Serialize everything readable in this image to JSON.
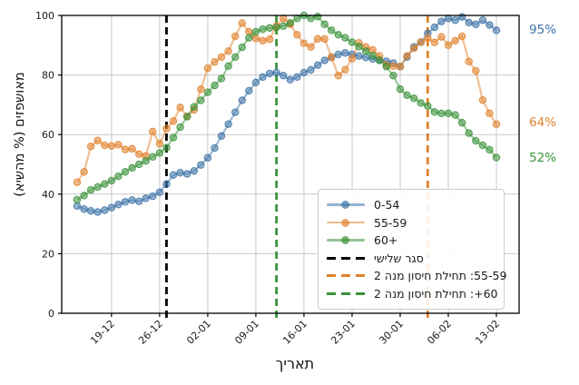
{
  "chart_data": {
    "type": "line",
    "title": "",
    "xlabel": "תאריך",
    "ylabel": "מאושפזים (% מהשיא)",
    "grid": true,
    "y_max": 100,
    "y_ticks": [
      0,
      20,
      40,
      60,
      80,
      100
    ],
    "x_tick_labels": [
      "19-12",
      "26-12",
      "02-01",
      "09-01",
      "16-01",
      "23-01",
      "30-01",
      "06-02",
      "13-02"
    ],
    "x_tick_day_indices": [
      5,
      12,
      19,
      26,
      33,
      40,
      47,
      54,
      61
    ],
    "series": [
      {
        "name": "0-54",
        "color": "#3d73a8",
        "values": [
          36.0,
          35.0,
          34.4,
          34.0,
          34.6,
          35.5,
          36.5,
          37.4,
          38.0,
          37.6,
          38.6,
          39.3,
          40.6,
          43.4,
          46.4,
          47.2,
          46.8,
          47.8,
          49.8,
          52.2,
          55.5,
          59.5,
          63.5,
          67.5,
          71.5,
          74.7,
          77.5,
          79.3,
          80.5,
          80.8,
          79.8,
          78.4,
          79.3,
          80.8,
          81.7,
          83.3,
          84.9,
          85.9,
          86.9,
          87.4,
          86.9,
          86.4,
          85.9,
          85.4,
          85.1,
          84.6,
          84.0,
          82.8,
          86.0,
          89.4,
          91.0,
          94.0,
          96.0,
          98.0,
          99.0,
          98.4,
          99.5,
          97.6,
          97.0,
          98.4,
          96.8,
          95.0
        ]
      },
      {
        "name": "55-59",
        "color": "#e1812c",
        "values": [
          44.0,
          47.5,
          56.0,
          58.0,
          56.4,
          56.2,
          56.6,
          55.0,
          55.2,
          53.4,
          52.8,
          61.0,
          56.9,
          62.0,
          64.5,
          69.1,
          66.1,
          68.3,
          75.2,
          82.3,
          84.4,
          86.0,
          88.0,
          93.0,
          97.4,
          94.5,
          92.3,
          91.5,
          92.0,
          96.4,
          99.0,
          97.0,
          93.5,
          90.6,
          89.4,
          92.1,
          92.1,
          86.0,
          79.8,
          81.8,
          85.5,
          90.8,
          89.4,
          88.4,
          86.4,
          83.3,
          83.0,
          82.8,
          86.4,
          89.0,
          91.0,
          92.4,
          90.9,
          92.8,
          90.0,
          91.5,
          93.0,
          84.5,
          81.4,
          71.6,
          67.1,
          63.5
        ]
      },
      {
        "name": "60+",
        "color": "#3a923a",
        "values": [
          38.1,
          39.5,
          41.4,
          42.4,
          43.4,
          44.5,
          46.0,
          47.5,
          48.8,
          50.0,
          51.2,
          52.5,
          53.8,
          55.6,
          59.0,
          62.5,
          66.0,
          69.3,
          71.5,
          74.2,
          76.5,
          78.8,
          83.0,
          86.0,
          89.3,
          92.5,
          94.5,
          95.4,
          95.8,
          96.0,
          96.4,
          97.5,
          99.0,
          100.0,
          99.0,
          99.6,
          97.0,
          95.0,
          93.5,
          92.5,
          91.0,
          89.5,
          88.0,
          86.5,
          84.9,
          82.8,
          79.8,
          75.2,
          73.2,
          72.2,
          70.6,
          69.6,
          67.6,
          67.1,
          67.1,
          66.6,
          64.0,
          60.5,
          57.9,
          56.4,
          54.9,
          52.3
        ]
      }
    ],
    "event_lines": [
      {
        "label": "סגר שלישי",
        "color": "#000000",
        "day_index": 13,
        "style": "dashed"
      },
      {
        "label": "55-59: תחילת חיסון מנה 2",
        "color": "#e1812c",
        "day_index": 51,
        "style": "dashed"
      },
      {
        "label": "60+: תחילת חיסון מנה 2",
        "color": "#3a923a",
        "day_index": 29,
        "style": "dashed"
      }
    ],
    "end_annotations": [
      {
        "text": "95%",
        "color": "#3d73a8",
        "value": 95
      },
      {
        "text": "64%",
        "color": "#e1812c",
        "value": 64
      },
      {
        "text": "52%",
        "color": "#3a923a",
        "value": 52
      }
    ],
    "legend_order": [
      "0-54",
      "55-59",
      "60+",
      "סגר שלישי",
      "55-59: תחילת חיסון מנה 2",
      "60+: תחילת חיסון מנה 2"
    ]
  }
}
